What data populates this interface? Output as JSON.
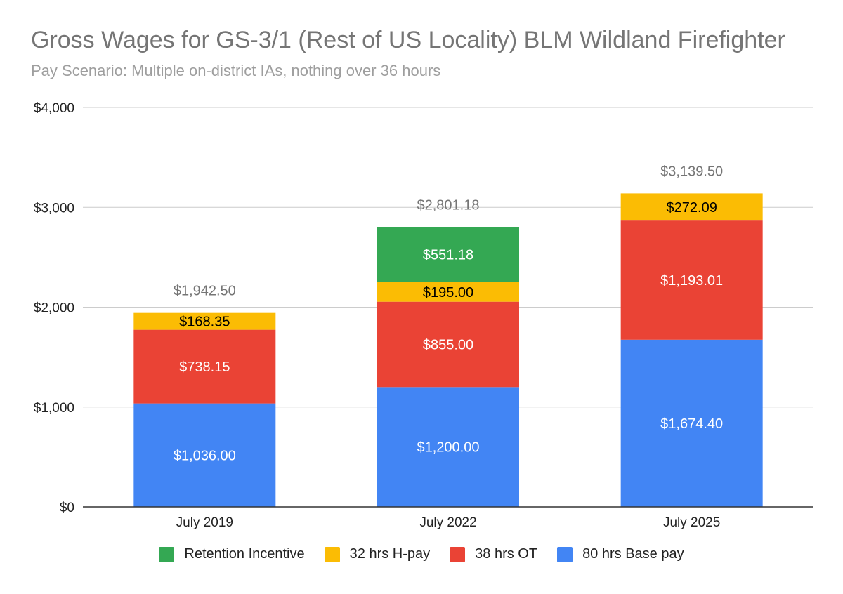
{
  "chart_data": {
    "type": "bar",
    "stacked": true,
    "title": "Gross Wages for GS-3/1 (Rest of US Locality) BLM Wildland Firefighter",
    "subtitle": "Pay Scenario: Multiple on-district IAs, nothing over 36 hours",
    "xlabel": "",
    "ylabel": "",
    "ylim": [
      0,
      4000
    ],
    "yticks": [
      0,
      1000,
      2000,
      3000,
      4000
    ],
    "ytick_labels": [
      "$0",
      "$1,000",
      "$2,000",
      "$3,000",
      "$4,000"
    ],
    "grid": true,
    "legend_position": "bottom",
    "categories": [
      "July 2019",
      "July 2022",
      "July 2025"
    ],
    "series": [
      {
        "name": "80 hrs Base pay",
        "color": "#4285f4",
        "label_color": "#ffffff",
        "values": [
          1036.0,
          1200.0,
          1674.4
        ],
        "labels": [
          "$1,036.00",
          "$1,200.00",
          "$1,674.40"
        ]
      },
      {
        "name": "38 hrs OT",
        "color": "#ea4335",
        "label_color": "#ffffff",
        "values": [
          738.15,
          855.0,
          1193.01
        ],
        "labels": [
          "$738.15",
          "$855.00",
          "$1,193.01"
        ]
      },
      {
        "name": "32 hrs H-pay",
        "color": "#fbbc04",
        "label_color": "#000000",
        "values": [
          168.35,
          195.0,
          272.09
        ],
        "labels": [
          "$168.35",
          "$195.00",
          "$272.09"
        ]
      },
      {
        "name": "Retention Incentive",
        "color": "#34a853",
        "label_color": "#ffffff",
        "values": [
          0,
          551.18,
          0
        ],
        "labels": [
          "",
          "$551.18",
          ""
        ]
      }
    ],
    "totals": [
      1942.5,
      2801.18,
      3139.5
    ],
    "total_labels": [
      "$1,942.50",
      "$2,801.18",
      "$3,139.50"
    ],
    "legend_order": [
      "Retention Incentive",
      "32 hrs H-pay",
      "38 hrs OT",
      "80 hrs Base pay"
    ]
  }
}
